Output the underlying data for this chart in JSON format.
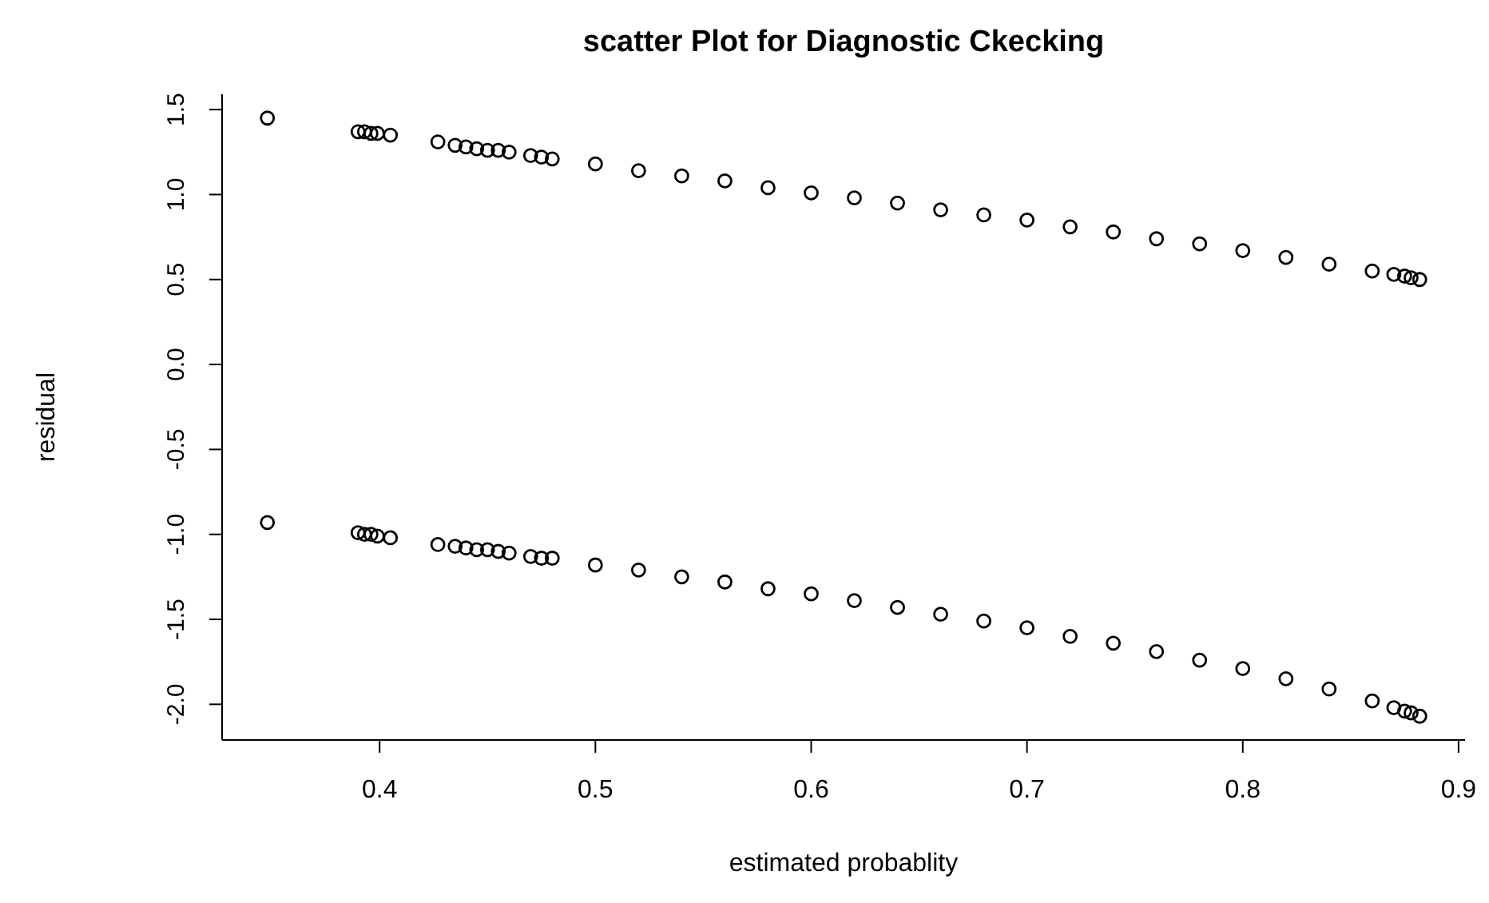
{
  "chart_data": {
    "type": "scatter",
    "title": "scatter Plot for Diagnostic Ckecking",
    "xlabel": "estimated probablity",
    "ylabel": "residual",
    "xlim": [
      0.327,
      0.903
    ],
    "xticks": [
      0.4,
      0.5,
      0.6,
      0.7,
      0.8,
      0.9
    ],
    "ylim": [
      -2.21,
      1.59
    ],
    "yticks": [
      {
        "value": -2,
        "label": "-2.0"
      },
      -1.5,
      {
        "value": -1,
        "label": "-1.0"
      },
      -0.5,
      {
        "value": 0,
        "label": "0.0"
      },
      0.5,
      {
        "value": 1,
        "label": "1.0"
      },
      1.5
    ],
    "grid": false,
    "marker": "circle",
    "series": [
      {
        "color": "#000000",
        "x": [
          0.348,
          0.39,
          0.393,
          0.396,
          0.399,
          0.405,
          0.427,
          0.435,
          0.44,
          0.445,
          0.45,
          0.455,
          0.46,
          0.47,
          0.475,
          0.48,
          0.5,
          0.52,
          0.54,
          0.56,
          0.58,
          0.6,
          0.62,
          0.64,
          0.66,
          0.68,
          0.7,
          0.72,
          0.74,
          0.76,
          0.78,
          0.8,
          0.82,
          0.84,
          0.86,
          0.87,
          0.875,
          0.878,
          0.882
        ],
        "values": [
          1.45,
          1.37,
          1.37,
          1.36,
          1.36,
          1.35,
          1.31,
          1.29,
          1.28,
          1.27,
          1.26,
          1.26,
          1.25,
          1.23,
          1.22,
          1.21,
          1.18,
          1.14,
          1.11,
          1.08,
          1.04,
          1.01,
          0.98,
          0.95,
          0.91,
          0.88,
          0.85,
          0.81,
          0.78,
          0.74,
          0.71,
          0.67,
          0.63,
          0.59,
          0.55,
          0.53,
          0.52,
          0.51,
          0.5
        ]
      },
      {
        "color": "#000000",
        "x": [
          0.348,
          0.39,
          0.393,
          0.396,
          0.399,
          0.405,
          0.427,
          0.435,
          0.44,
          0.445,
          0.45,
          0.455,
          0.46,
          0.47,
          0.475,
          0.48,
          0.5,
          0.52,
          0.54,
          0.56,
          0.58,
          0.6,
          0.62,
          0.64,
          0.66,
          0.68,
          0.7,
          0.72,
          0.74,
          0.76,
          0.78,
          0.8,
          0.82,
          0.84,
          0.86,
          0.87,
          0.875,
          0.878,
          0.882
        ],
        "values": [
          -0.93,
          -0.99,
          -1,
          -1,
          -1.01,
          -1.02,
          -1.06,
          -1.07,
          -1.08,
          -1.09,
          -1.09,
          -1.1,
          -1.11,
          -1.13,
          -1.14,
          -1.14,
          -1.18,
          -1.21,
          -1.25,
          -1.28,
          -1.32,
          -1.35,
          -1.39,
          -1.43,
          -1.47,
          -1.51,
          -1.55,
          -1.6,
          -1.64,
          -1.69,
          -1.74,
          -1.79,
          -1.85,
          -1.91,
          -1.98,
          -2.02,
          -2.04,
          -2.05,
          -2.07
        ]
      }
    ]
  }
}
